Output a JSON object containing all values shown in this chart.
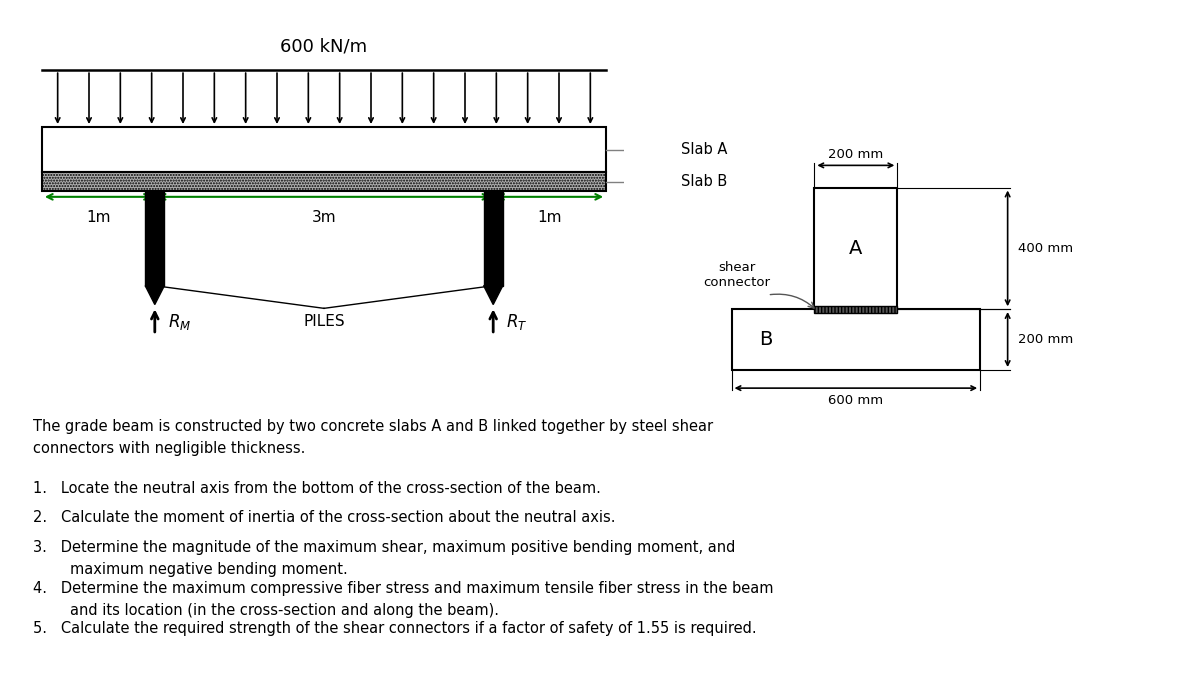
{
  "bg_color": "#ffffff",
  "load_label": "600 kN/m",
  "dim_labels": [
    "1m",
    "3m",
    "1m"
  ],
  "pile_label": "PILES",
  "slab_labels": [
    "Slab A",
    "Slab B"
  ],
  "text_intro": "The grade beam is constructed by two concrete slabs A and B linked together by steel shear\nconnectors with negligible thickness.",
  "text_items": [
    "1.   Locate the neutral axis from the bottom of the cross-section of the beam.",
    "2.   Calculate the moment of inertia of the cross-section about the neutral axis.",
    "3.   Determine the magnitude of the maximum shear, maximum positive bending moment, and\n        maximum negative bending moment.",
    "4.   Determine the maximum compressive fiber stress and maximum tensile fiber stress in the beam\n        and its location (in the cross-section and along the beam).",
    "5.   Calculate the required strength of the shear connectors if a factor of safety of 1.55 is required."
  ],
  "beam_xlim": [
    0,
    10
  ],
  "beam_ylim": [
    0,
    10
  ],
  "cs_xlim": [
    0,
    10
  ],
  "cs_ylim": [
    0,
    10
  ]
}
